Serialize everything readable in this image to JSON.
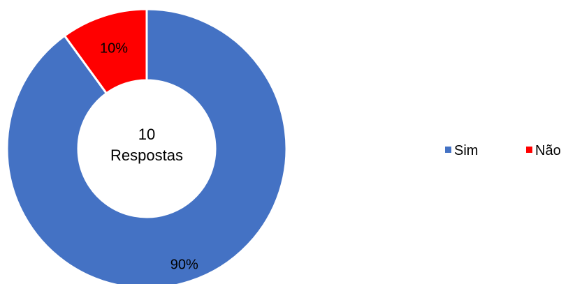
{
  "chart_data": {
    "type": "pie",
    "variant": "donut",
    "categories": [
      "Sim",
      "Não"
    ],
    "values": [
      90,
      10
    ],
    "value_labels": [
      "90%",
      "10%"
    ],
    "colors": [
      "#4472C4",
      "#FF0000"
    ],
    "center_text": [
      "10",
      "Respostas"
    ],
    "legend_position": "right",
    "title": ""
  }
}
